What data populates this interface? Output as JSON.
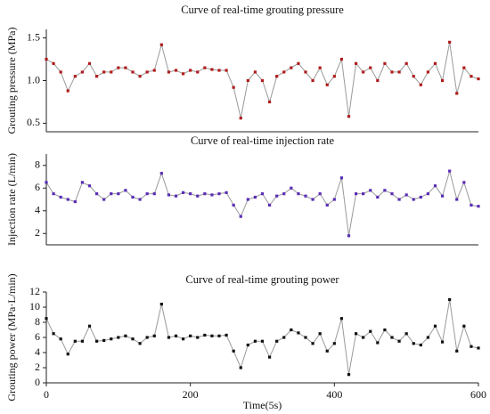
{
  "chart_data": [
    {
      "type": "line",
      "title": "Curve of real-time grouting pressure",
      "ylabel": "Grouting pressure (MPa)",
      "xlim": [
        0,
        600
      ],
      "ylim": [
        0.4,
        1.6
      ],
      "yticks": [
        0.5,
        {
          "value": 1,
          "label": "1.0"
        },
        1.5
      ],
      "x": [
        0,
        10,
        20,
        30,
        40,
        50,
        60,
        70,
        80,
        90,
        100,
        110,
        120,
        130,
        140,
        150,
        160,
        170,
        180,
        190,
        200,
        210,
        220,
        230,
        240,
        250,
        260,
        270,
        280,
        290,
        300,
        310,
        320,
        330,
        340,
        350,
        360,
        370,
        380,
        390,
        400,
        410,
        420,
        430,
        440,
        450,
        460,
        470,
        480,
        490,
        500,
        510,
        520,
        530,
        540,
        550,
        560,
        570,
        580,
        590,
        600
      ],
      "series": [
        {
          "color": "#b01c1c",
          "values": [
            1.25,
            1.2,
            1.1,
            0.88,
            1.05,
            1.1,
            1.2,
            1.05,
            1.1,
            1.1,
            1.15,
            1.15,
            1.1,
            1.05,
            1.1,
            1.12,
            1.42,
            1.1,
            1.12,
            1.08,
            1.12,
            1.1,
            1.15,
            1.13,
            1.12,
            1.12,
            0.92,
            0.56,
            1.0,
            1.1,
            1.0,
            0.75,
            1.05,
            1.1,
            1.15,
            1.2,
            1.1,
            1.0,
            1.15,
            0.95,
            1.05,
            1.25,
            0.58,
            1.2,
            1.1,
            1.15,
            1.0,
            1.2,
            1.1,
            1.1,
            1.2,
            1.05,
            0.95,
            1.1,
            1.2,
            1.0,
            1.45,
            0.85,
            1.15,
            1.05,
            1.02
          ]
        }
      ]
    },
    {
      "type": "line",
      "title": "Curve of real-time injection rate",
      "ylabel": "Injection rate (L/min)",
      "xlim": [
        0,
        600
      ],
      "ylim": [
        1,
        9
      ],
      "yticks": [
        2,
        4,
        6,
        8
      ],
      "x": [
        0,
        10,
        20,
        30,
        40,
        50,
        60,
        70,
        80,
        90,
        100,
        110,
        120,
        130,
        140,
        150,
        160,
        170,
        180,
        190,
        200,
        210,
        220,
        230,
        240,
        250,
        260,
        270,
        280,
        290,
        300,
        310,
        320,
        330,
        340,
        350,
        360,
        370,
        380,
        390,
        400,
        410,
        420,
        430,
        440,
        450,
        460,
        470,
        480,
        490,
        500,
        510,
        520,
        530,
        540,
        550,
        560,
        570,
        580,
        590,
        600
      ],
      "series": [
        {
          "color": "#5a2db5",
          "values": [
            6.5,
            5.5,
            5.2,
            5.0,
            4.8,
            6.5,
            6.2,
            5.5,
            5.0,
            5.5,
            5.5,
            5.8,
            5.2,
            5.0,
            5.5,
            5.5,
            7.3,
            5.4,
            5.3,
            5.6,
            5.5,
            5.3,
            5.5,
            5.4,
            5.5,
            5.6,
            4.5,
            3.5,
            5.0,
            5.2,
            5.5,
            4.5,
            5.3,
            5.5,
            6.0,
            5.5,
            5.3,
            5.0,
            5.5,
            4.5,
            5.0,
            6.9,
            1.8,
            5.5,
            5.5,
            5.8,
            5.2,
            5.8,
            5.5,
            5.0,
            5.4,
            5.0,
            5.2,
            5.5,
            6.2,
            5.3,
            7.5,
            5.0,
            6.5,
            4.5,
            4.4
          ]
        }
      ]
    },
    {
      "type": "line",
      "title": "Curve of real-time grouting power",
      "ylabel": "Grouting power (MPa·L/min)",
      "xlabel": "Time(5s)",
      "xlim": [
        0,
        600
      ],
      "ylim": [
        0,
        12
      ],
      "xticks": [
        0,
        200,
        400,
        600
      ],
      "yticks": [
        0,
        2,
        4,
        6,
        8,
        10,
        12
      ],
      "x": [
        0,
        10,
        20,
        30,
        40,
        50,
        60,
        70,
        80,
        90,
        100,
        110,
        120,
        130,
        140,
        150,
        160,
        170,
        180,
        190,
        200,
        210,
        220,
        230,
        240,
        250,
        260,
        270,
        280,
        290,
        300,
        310,
        320,
        330,
        340,
        350,
        360,
        370,
        380,
        390,
        400,
        410,
        420,
        430,
        440,
        450,
        460,
        470,
        480,
        490,
        500,
        510,
        520,
        530,
        540,
        550,
        560,
        570,
        580,
        590,
        600
      ],
      "series": [
        {
          "color": "#111111",
          "values": [
            8.5,
            6.5,
            5.8,
            3.8,
            5.5,
            5.5,
            7.5,
            5.5,
            5.6,
            5.8,
            6.0,
            6.2,
            5.8,
            5.2,
            6.0,
            6.2,
            10.4,
            6.0,
            6.2,
            5.8,
            6.2,
            6.0,
            6.3,
            6.2,
            6.2,
            6.3,
            4.2,
            2.0,
            5.0,
            5.5,
            5.5,
            3.4,
            5.5,
            6.0,
            7.0,
            6.6,
            6.0,
            5.2,
            6.5,
            4.2,
            5.2,
            8.5,
            1.1,
            6.5,
            6.0,
            6.8,
            5.3,
            7.0,
            6.0,
            5.5,
            6.5,
            5.2,
            5.0,
            6.0,
            7.5,
            5.4,
            11.0,
            4.2,
            7.5,
            4.8,
            4.6
          ]
        }
      ]
    }
  ]
}
